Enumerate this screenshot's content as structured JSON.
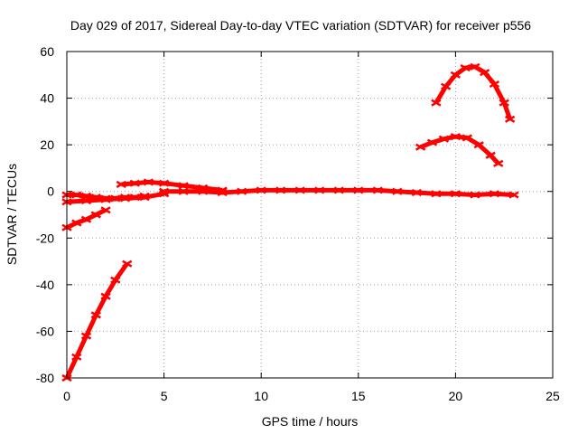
{
  "chart_data": {
    "type": "scatter",
    "title": "Day 029 of 2017, Sidereal Day-to-day VTEC variation (SDTVAR) for receiver p556",
    "xlabel": "GPS time / hours",
    "ylabel": "SDTVAR / TECUs",
    "xlim": [
      0,
      25
    ],
    "ylim": [
      -80,
      60
    ],
    "xticks": [
      0,
      5,
      10,
      15,
      20,
      25
    ],
    "yticks": [
      -80,
      -60,
      -40,
      -20,
      0,
      20,
      40,
      60
    ],
    "grid": true,
    "color": "#ff0000",
    "series": [
      {
        "x": [
          0.0,
          0.5,
          1.0,
          1.5,
          2.0,
          2.5,
          3.1
        ],
        "y": [
          -80,
          -71,
          -62,
          -53,
          -45,
          -38,
          -31
        ]
      },
      {
        "x": [
          0.0,
          0.5,
          1.0,
          1.5,
          2.0
        ],
        "y": [
          -15.5,
          -13.5,
          -12,
          -10,
          -8
        ]
      },
      {
        "x": [
          0.0,
          0.5,
          1.0,
          1.5,
          2.0,
          2.5,
          3.0,
          3.5,
          4.0
        ],
        "y": [
          -1.5,
          -1.5,
          -2,
          -2.5,
          -3,
          -3,
          -2.5,
          -2.5,
          -2
        ]
      },
      {
        "x": [
          0.0,
          1.0,
          2.0,
          3.0,
          4.0,
          5.0
        ],
        "y": [
          -4.5,
          -4,
          -3.5,
          -3,
          -2.5,
          -1
        ]
      },
      {
        "x": [
          2.8,
          3.5,
          4.2,
          5.0,
          6.0,
          7.0,
          8.0
        ],
        "y": [
          3,
          3.5,
          4,
          3.5,
          2.5,
          1.5,
          0.5
        ]
      },
      {
        "x": [
          5,
          6,
          7,
          8,
          9,
          10,
          11,
          12,
          13,
          14,
          15,
          16,
          17,
          18,
          19,
          20,
          21,
          22,
          23
        ],
        "y": [
          0,
          0,
          0,
          -0.5,
          0,
          0.5,
          0.5,
          0.5,
          0.5,
          0.5,
          0.5,
          0.5,
          0,
          -0.5,
          -1,
          -1,
          -1.5,
          -1,
          -1.5
        ]
      },
      {
        "x": [
          18.2,
          18.8,
          19.4,
          20.0,
          20.6,
          21.2,
          21.8,
          22.2
        ],
        "y": [
          19,
          21,
          22.5,
          23.5,
          23,
          20,
          15.5,
          12
        ]
      },
      {
        "x": [
          19.0,
          19.5,
          20.0,
          20.5,
          21.0,
          21.5,
          22.0,
          22.5,
          22.8
        ],
        "y": [
          38,
          45,
          50,
          53,
          53.5,
          51,
          46,
          38,
          31
        ]
      }
    ]
  }
}
